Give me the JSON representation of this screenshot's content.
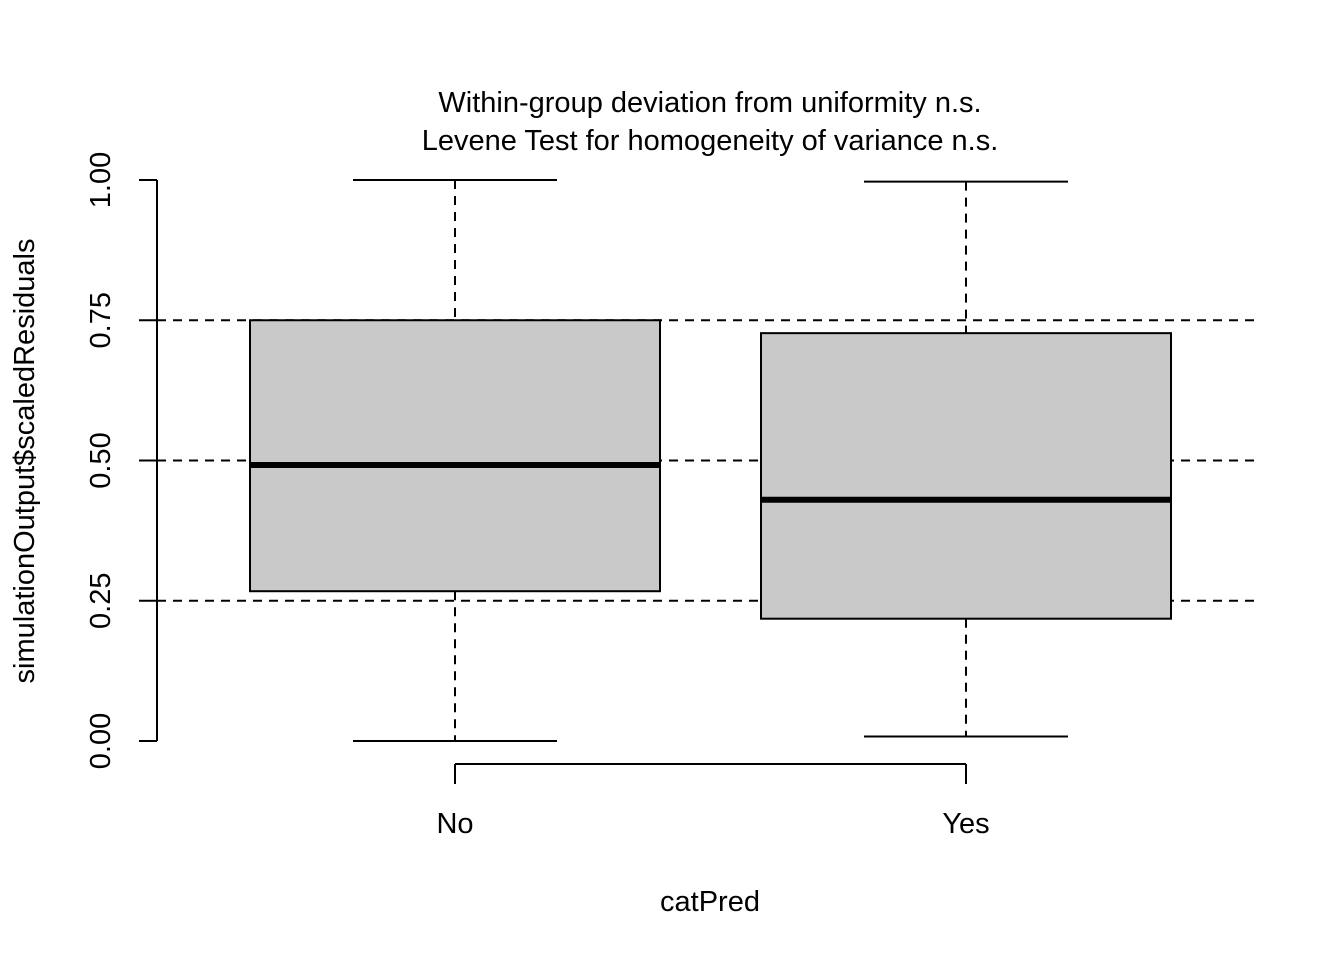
{
  "chart_data": {
    "type": "boxplot",
    "title_lines": [
      "Within-group deviation from uniformity n.s.",
      "Levene Test for homogeneity of variance n.s."
    ],
    "xlabel": "catPred",
    "ylabel": "simulationOutput$scaledResiduals",
    "categories": [
      "No",
      "Yes"
    ],
    "ylim": [
      0,
      1
    ],
    "yticks": [
      0,
      0.25,
      0.5,
      0.75,
      1
    ],
    "ytick_labels": [
      "0.00",
      "0.25",
      "0.50",
      "0.75",
      "1.00"
    ],
    "reference_lines": [
      0.25,
      0.5,
      0.75
    ],
    "boxes": [
      {
        "category": "No",
        "min": 0.0,
        "q1": 0.267,
        "median": 0.492,
        "q3": 0.75,
        "max": 1.0
      },
      {
        "category": "Yes",
        "min": 0.008,
        "q1": 0.218,
        "median": 0.43,
        "q3": 0.727,
        "max": 0.997
      }
    ],
    "box_fill": "#c9c9c9",
    "line_color": "#000000",
    "grid": false
  }
}
